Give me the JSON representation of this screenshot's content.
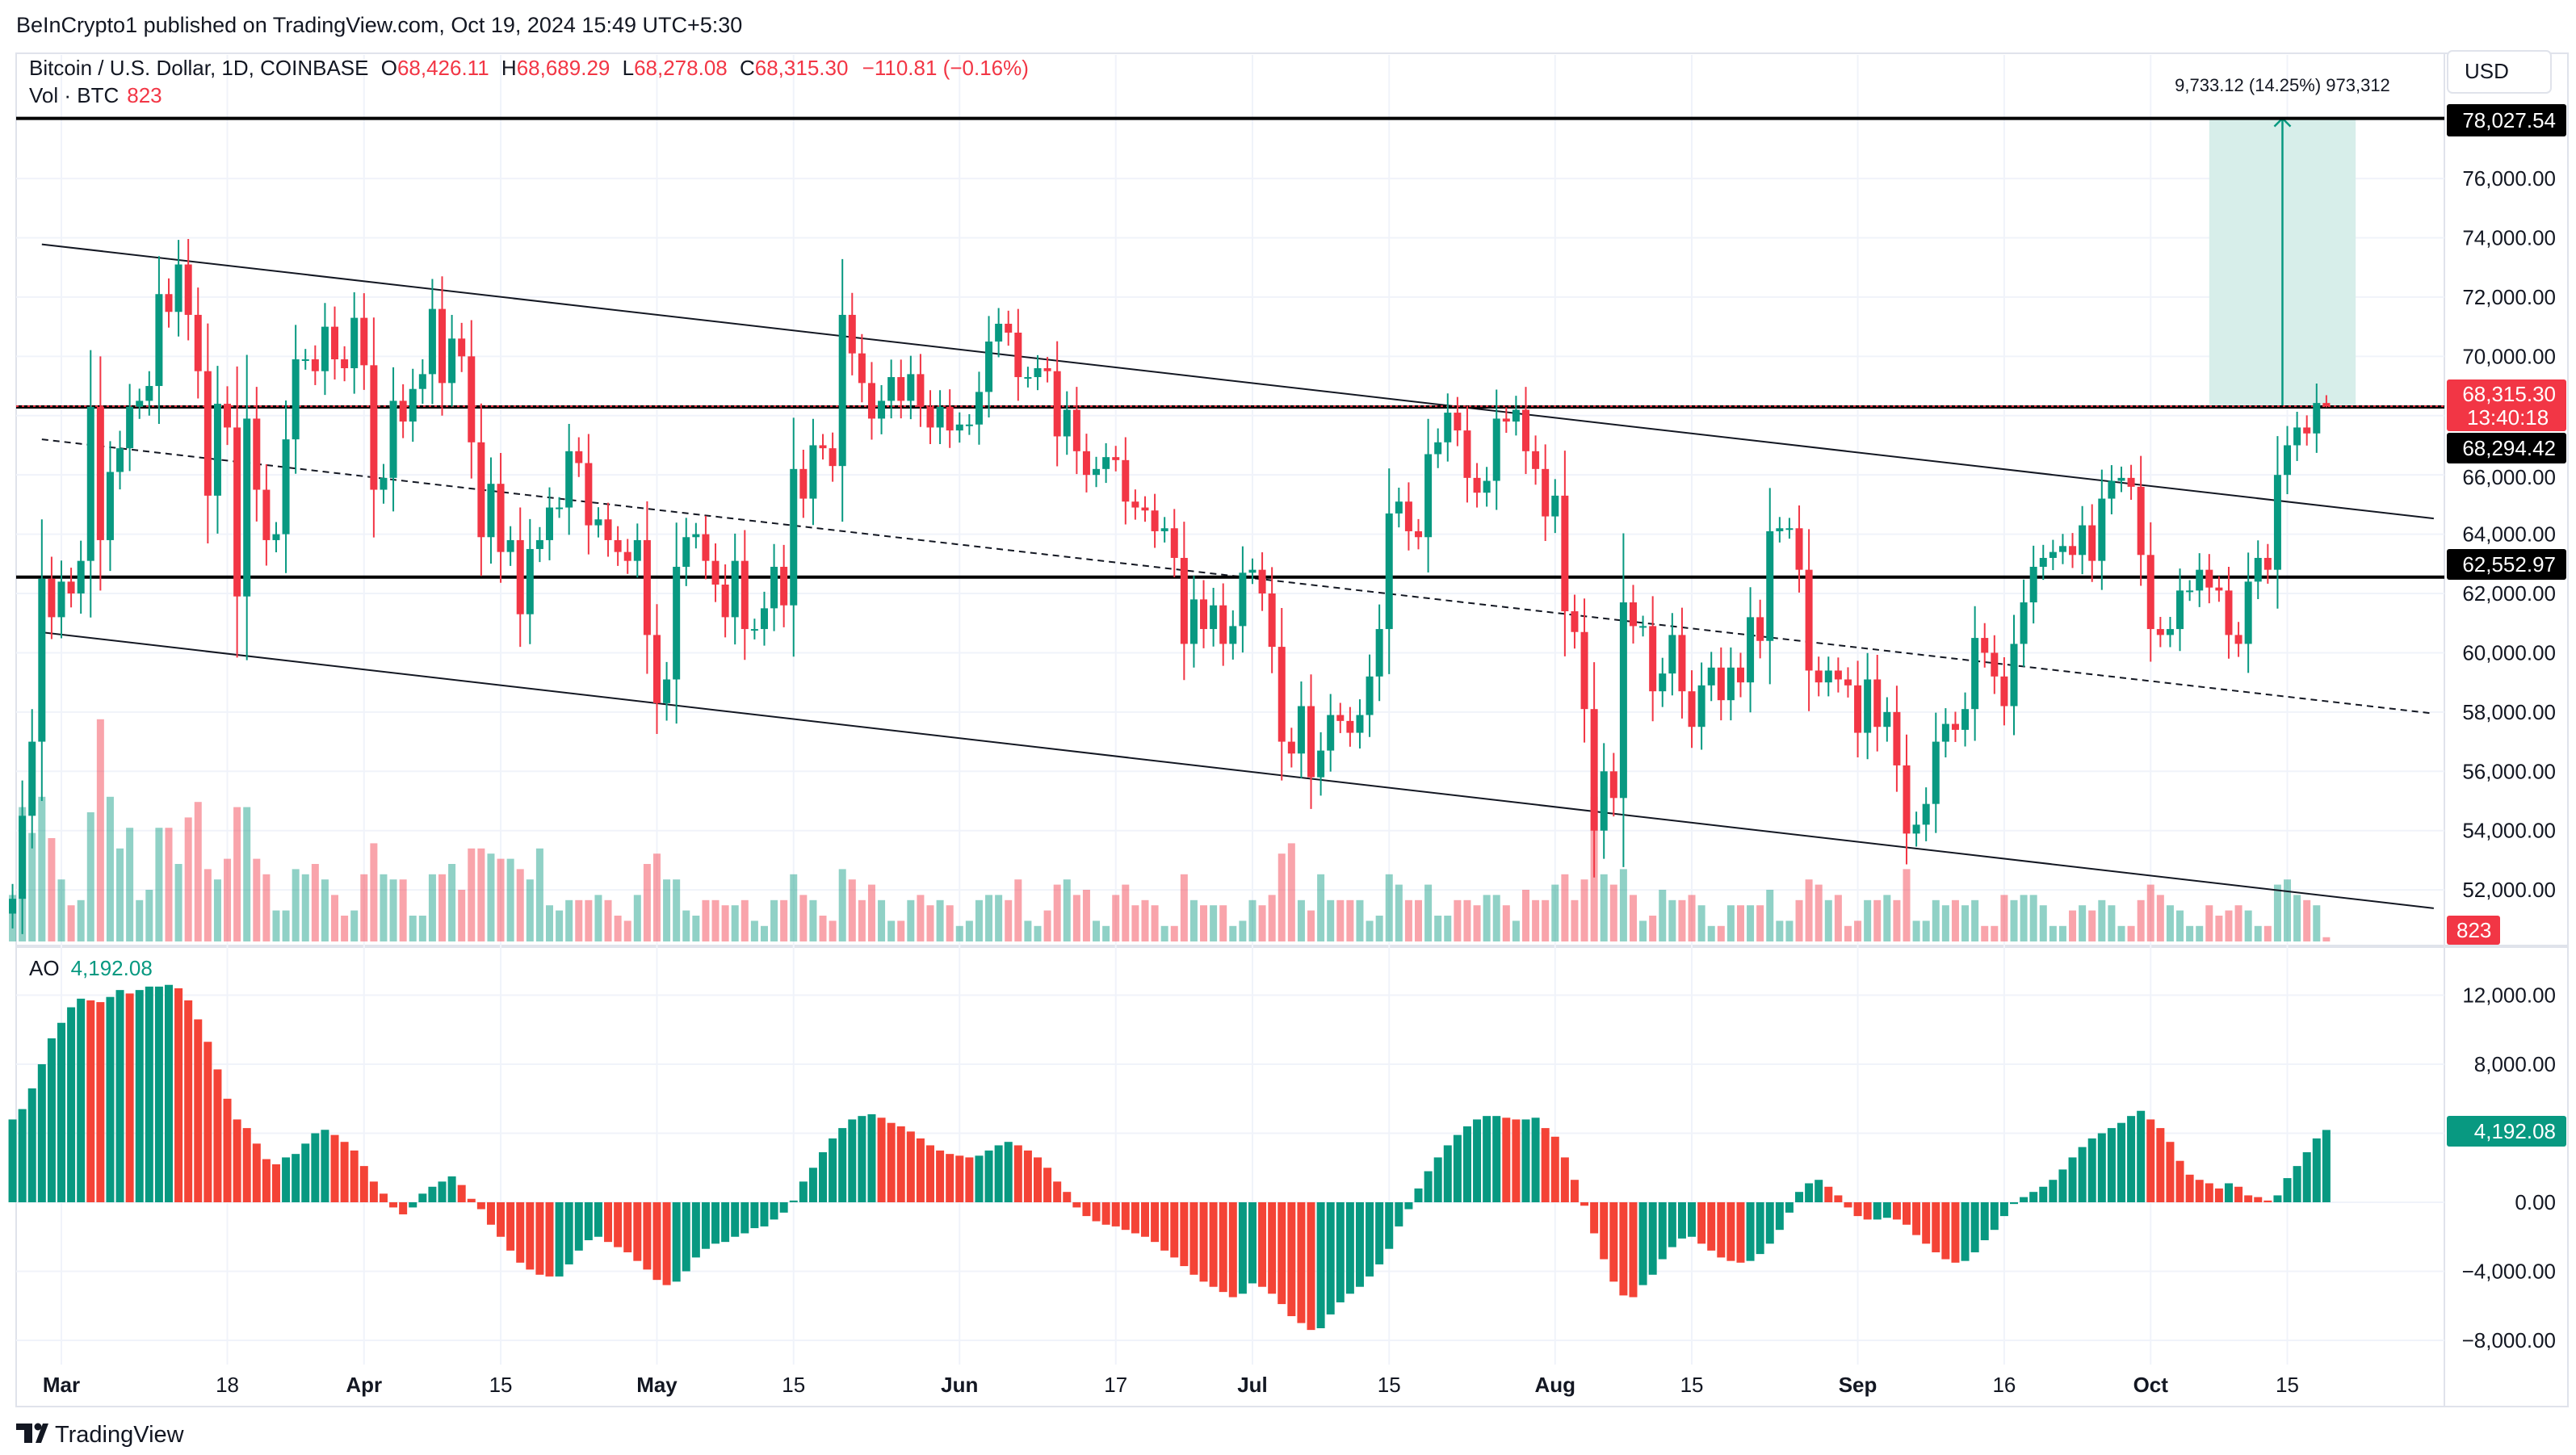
{
  "header": {
    "published": "BeInCrypto1 published on TradingView.com, Oct 19, 2024 15:49 UTC+5:30"
  },
  "legend": {
    "symbol": "Bitcoin / U.S. Dollar, 1D, COINBASE",
    "o_label": "O",
    "o": "68,426.11",
    "h_label": "H",
    "h": "68,689.29",
    "l_label": "L",
    "l": "68,278.08",
    "c_label": "C",
    "c": "68,315.30",
    "change": "−110.81 (−0.16%)",
    "vol_label": "Vol · BTC",
    "vol": "823"
  },
  "currency_button": "USD",
  "tags": {
    "target": "78,027.54",
    "last_price": "68,315.30",
    "countdown": "13:40:18",
    "level_mid": "68,294.42",
    "level_low": "62,552.97",
    "volume": "823",
    "ao": "4,192.08"
  },
  "measure": {
    "label": "9,733.12 (14.25%) 973,312",
    "from_date": "2024-10-07",
    "to_date": "2024-10-22",
    "from_price": 68294.42,
    "to_price": 78027.54
  },
  "ao_panel": {
    "title": "AO",
    "value": "4,192.08"
  },
  "logo": {
    "text": "TradingView"
  },
  "colors": {
    "up": "#089981",
    "down": "#f23645",
    "grid": "#f0f3fa",
    "measure_fill": "#d7eeea"
  },
  "chart_data": {
    "type": "candlestick",
    "price_axis": {
      "ticks": [
        76000,
        74000,
        72000,
        70000,
        66000,
        64000,
        62000,
        60000,
        58000,
        56000,
        54000,
        52000
      ],
      "ylim": [
        50500,
        80000
      ]
    },
    "ao_axis": {
      "ticks": [
        12000,
        8000,
        0,
        -4000,
        -8000
      ],
      "ylim": [
        -9000,
        14000
      ]
    },
    "x_ticks": [
      {
        "label": "Mar",
        "date": "2024-03-01",
        "bold": true
      },
      {
        "label": "18",
        "date": "2024-03-18"
      },
      {
        "label": "Apr",
        "date": "2024-04-01",
        "bold": true
      },
      {
        "label": "15",
        "date": "2024-04-15"
      },
      {
        "label": "May",
        "date": "2024-05-01",
        "bold": true
      },
      {
        "label": "15",
        "date": "2024-05-15"
      },
      {
        "label": "Jun",
        "date": "2024-06-01",
        "bold": true
      },
      {
        "label": "17",
        "date": "2024-06-17"
      },
      {
        "label": "Jul",
        "date": "2024-07-01",
        "bold": true
      },
      {
        "label": "15",
        "date": "2024-07-15"
      },
      {
        "label": "Aug",
        "date": "2024-08-01",
        "bold": true
      },
      {
        "label": "15",
        "date": "2024-08-15"
      },
      {
        "label": "Sep",
        "date": "2024-09-01",
        "bold": true
      },
      {
        "label": "16",
        "date": "2024-09-16"
      },
      {
        "label": "Oct",
        "date": "2024-10-01",
        "bold": true
      },
      {
        "label": "15",
        "date": "2024-10-15"
      }
    ],
    "last_bar": {
      "open": 68426.11,
      "high": 68689.29,
      "low": 68278.08,
      "close": 68315.3
    },
    "months": [
      {
        "month": "2024-02",
        "first_day": 25,
        "close": [
          51700,
          54500,
          57000,
          62500,
          61200
        ],
        "volume_k": [
          9,
          26,
          21,
          28,
          20
        ],
        "ao_k": [
          4.8,
          5.4,
          6.6,
          8.0,
          9.5
        ]
      },
      {
        "month": "2024-03",
        "first_day": 1,
        "close": [
          62400,
          62000,
          63100,
          68300,
          63800,
          66100,
          66900,
          68300,
          68500,
          69000,
          72100,
          71500,
          73100,
          71400,
          69500,
          65300,
          68400,
          67600,
          61900,
          67900,
          65500,
          63800,
          64000,
          67200,
          69900,
          69900,
          69500,
          71000,
          69900,
          69600,
          71300
        ],
        "volume_k": [
          12,
          7,
          8,
          25,
          43,
          28,
          18,
          22,
          8,
          10,
          22,
          22,
          15,
          24,
          27,
          14,
          12,
          16,
          26,
          26,
          16,
          13,
          6,
          6,
          14,
          13,
          15,
          12,
          9,
          5,
          6
        ],
        "ao_k": [
          10.4,
          11.3,
          11.8,
          11.7,
          11.6,
          11.9,
          12.3,
          12.1,
          12.3,
          12.5,
          12.5,
          12.6,
          12.4,
          11.7,
          10.6,
          9.3,
          7.7,
          6.0,
          4.8,
          4.3,
          3.4,
          2.5,
          2.2,
          2.6,
          2.8,
          3.4,
          4.0,
          4.2,
          3.9,
          3.5,
          3.0
        ]
      },
      {
        "month": "2024-04",
        "first_day": 1,
        "close": [
          69700,
          65500,
          65900,
          68500,
          67800,
          68900,
          69400,
          71600,
          69100,
          70600,
          70000,
          67100,
          63900,
          65700,
          63400,
          63800,
          61300,
          63500,
          63800,
          64900,
          64900,
          66800,
          66400,
          64300,
          64500,
          63800,
          63400,
          63100,
          63800,
          60600
        ],
        "volume_k": [
          13,
          19,
          13,
          12,
          12,
          5,
          5,
          13,
          13,
          15,
          10,
          18,
          18,
          17,
          16,
          16,
          14,
          12,
          18,
          7,
          6,
          8,
          8,
          8,
          9,
          8,
          5,
          4,
          9,
          15
        ],
        "ao_k": [
          2.1,
          1.2,
          0.5,
          -0.3,
          -0.7,
          -0.3,
          0.5,
          0.9,
          1.2,
          1.5,
          1.0,
          0.2,
          -0.4,
          -1.3,
          -2.0,
          -2.8,
          -3.5,
          -3.9,
          -4.2,
          -4.3,
          -4.3,
          -3.6,
          -2.8,
          -2.2,
          -2.0,
          -2.3,
          -2.6,
          -2.9,
          -3.4,
          -3.9
        ]
      },
      {
        "month": "2024-05",
        "first_day": 1,
        "close": [
          58300,
          59100,
          62900,
          63900,
          64000,
          63100,
          62300,
          61200,
          63100,
          60800,
          60800,
          61500,
          62900,
          61600,
          66200,
          65200,
          67000,
          66900,
          66300,
          71400,
          70100,
          69100,
          67900,
          68500,
          69300,
          68500,
          69400,
          68300,
          67600,
          68300,
          67500
        ],
        "volume_k": [
          17,
          12,
          12,
          6,
          5,
          8,
          8,
          7,
          7,
          8,
          4,
          3,
          8,
          8,
          13,
          9,
          8,
          5,
          4,
          14,
          12,
          8,
          11,
          8,
          4,
          4,
          8,
          9,
          7,
          8,
          7
        ],
        "ao_k": [
          -4.5,
          -4.8,
          -4.6,
          -4.0,
          -3.2,
          -2.7,
          -2.4,
          -2.3,
          -2.0,
          -1.8,
          -1.5,
          -1.4,
          -1.0,
          -0.6,
          0.1,
          1.2,
          2.0,
          2.9,
          3.7,
          4.3,
          4.8,
          5.0,
          5.1,
          4.9,
          4.6,
          4.4,
          4.1,
          3.7,
          3.3,
          3.0,
          2.8
        ]
      },
      {
        "month": "2024-06",
        "first_day": 1,
        "close": [
          67700,
          67700,
          68800,
          70500,
          71100,
          70800,
          69300,
          69300,
          69600,
          69500,
          67300,
          68200,
          66800,
          66000,
          66200,
          66600,
          66500,
          65100,
          64900,
          64800,
          64100,
          64200,
          63200,
          60300,
          61800,
          60800,
          61600,
          60300,
          60900,
          62700
        ],
        "volume_k": [
          3,
          4,
          8,
          9,
          9,
          8,
          12,
          4,
          3,
          6,
          11,
          12,
          9,
          10,
          4,
          3,
          9,
          11,
          7,
          8,
          7,
          3,
          3,
          13,
          8,
          7,
          7,
          7,
          3,
          4
        ],
        "ao_k": [
          2.7,
          2.6,
          2.7,
          3.0,
          3.3,
          3.5,
          3.3,
          3.0,
          2.6,
          2.0,
          1.2,
          0.6,
          -0.3,
          -0.8,
          -1.1,
          -1.3,
          -1.4,
          -1.6,
          -1.8,
          -2.0,
          -2.3,
          -2.8,
          -3.2,
          -3.7,
          -4.2,
          -4.6,
          -4.9,
          -5.2,
          -5.5,
          -5.3
        ]
      },
      {
        "month": "2024-07",
        "first_day": 1,
        "close": [
          62800,
          62000,
          60200,
          57000,
          56600,
          58200,
          55800,
          56700,
          57900,
          57700,
          57300,
          57900,
          59200,
          60800,
          64700,
          65100,
          64100,
          63900,
          66700,
          67100,
          68100,
          67500,
          65900,
          65400,
          65800,
          67900,
          67800,
          68200,
          66800,
          66200,
          64600
        ],
        "volume_k": [
          8,
          7,
          9,
          17,
          19,
          8,
          6,
          13,
          8,
          8,
          8,
          8,
          4,
          5,
          13,
          11,
          8,
          8,
          11,
          5,
          5,
          8,
          8,
          7,
          9,
          9,
          7,
          4,
          10,
          8,
          8
        ],
        "ao_k": [
          -4.7,
          -4.9,
          -5.3,
          -5.9,
          -6.6,
          -7.0,
          -7.4,
          -7.3,
          -6.5,
          -5.8,
          -5.3,
          -4.9,
          -4.3,
          -3.6,
          -2.7,
          -1.4,
          -0.4,
          0.8,
          1.8,
          2.6,
          3.3,
          3.9,
          4.4,
          4.8,
          5.0,
          5.0,
          4.9,
          4.8,
          4.8,
          4.9,
          4.3
        ]
      },
      {
        "month": "2024-08",
        "first_day": 1,
        "close": [
          65300,
          61400,
          60700,
          58100,
          54000,
          56000,
          55100,
          61700,
          60900,
          60900,
          58700,
          59300,
          60600,
          58700,
          57500,
          58900,
          59500,
          58400,
          59500,
          59000,
          61200,
          60400,
          64100,
          64200,
          64200,
          62800,
          59400,
          59000,
          59400,
          59100,
          58900
        ],
        "volume_k": [
          11,
          13,
          8,
          12,
          28,
          13,
          11,
          14,
          9,
          4,
          5,
          10,
          8,
          8,
          9,
          7,
          3,
          3,
          7,
          7,
          7,
          7,
          10,
          4,
          4,
          8,
          12,
          11,
          8,
          9,
          3
        ],
        "ao_k": [
          3.8,
          2.6,
          1.3,
          -0.2,
          -1.8,
          -3.3,
          -4.6,
          -5.4,
          -5.5,
          -4.8,
          -4.2,
          -3.3,
          -2.6,
          -2.1,
          -2.0,
          -2.4,
          -2.8,
          -3.2,
          -3.4,
          -3.5,
          -3.4,
          -3.0,
          -2.4,
          -1.6,
          -0.6,
          0.6,
          1.1,
          1.3,
          0.9,
          0.4,
          -0.3
        ]
      },
      {
        "month": "2024-09",
        "first_day": 1,
        "close": [
          57300,
          59100,
          57500,
          58000,
          56200,
          53900,
          54200,
          54900,
          57000,
          57600,
          57400,
          58100,
          60500,
          60000,
          59200,
          58200,
          60300,
          61700,
          62900,
          63200,
          63400,
          63600,
          63300,
          64300,
          63100,
          65200,
          65800,
          65900,
          65600,
          63300
        ],
        "volume_k": [
          4,
          8,
          8,
          9,
          8,
          14,
          4,
          4,
          8,
          7,
          8,
          7,
          8,
          3,
          3,
          9,
          8,
          9,
          9,
          7,
          3,
          3,
          6,
          7,
          6,
          8,
          7,
          3,
          3,
          8
        ],
        "ao_k": [
          -0.8,
          -1.0,
          -1.0,
          -0.9,
          -1.0,
          -1.3,
          -1.9,
          -2.4,
          -2.9,
          -3.3,
          -3.5,
          -3.4,
          -2.9,
          -2.2,
          -1.6,
          -0.8,
          -0.1,
          0.3,
          0.6,
          0.9,
          1.3,
          1.9,
          2.6,
          3.2,
          3.7,
          4.0,
          4.3,
          4.6,
          5.0,
          5.3
        ]
      },
      {
        "month": "2024-10",
        "first_day": 1,
        "close": [
          60800,
          60600,
          60800,
          62100,
          62100,
          62800,
          62200,
          62100,
          60600,
          60300,
          62400,
          63200,
          62800,
          66000,
          67000,
          67600,
          67400,
          68426.11,
          68315.3
        ],
        "volume_k": [
          11,
          9,
          7,
          6,
          3,
          3,
          7,
          5,
          6,
          7,
          6,
          3,
          3,
          11,
          12,
          9,
          8,
          7,
          0.823
        ],
        "ao_k": [
          4.8,
          4.3,
          3.5,
          2.4,
          1.6,
          1.3,
          1.1,
          0.8,
          1.1,
          0.9,
          0.4,
          0.3,
          0.1,
          0.4,
          1.4,
          2.1,
          2.9,
          3.7,
          4.19208
        ]
      }
    ],
    "drawings": {
      "channel_upper": [
        {
          "date": "2024-02-28",
          "price": 73780
        },
        {
          "date": "2024-10-30",
          "price": 64530
        }
      ],
      "channel_mid": [
        {
          "date": "2024-02-28",
          "price": 67200
        },
        {
          "date": "2024-10-30",
          "price": 57950
        }
      ],
      "channel_lower": [
        {
          "date": "2024-02-28",
          "price": 60690
        },
        {
          "date": "2024-10-30",
          "price": 51380
        }
      ],
      "horizontal_levels": [
        78027.54,
        68294.42,
        62552.97
      ],
      "last_price_line": 68315.3
    }
  }
}
